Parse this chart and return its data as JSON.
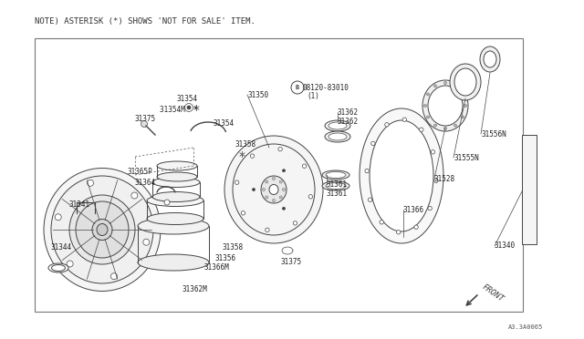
{
  "bg_color": "#ffffff",
  "note_text": "NOTE) ASTERISK (*) SHOWS 'NOT FOR SALE' ITEM.",
  "diagram_id": "A3.3A0065",
  "color": "#444444",
  "thin": 0.5,
  "lw": 0.7,
  "label_fontsize": 5.5,
  "parts_labels": [
    [
      193,
      108,
      "31354"
    ],
    [
      175,
      120,
      "31354M  *"
    ],
    [
      147,
      130,
      "31375"
    ],
    [
      233,
      135,
      "31354"
    ],
    [
      140,
      188,
      "31365P"
    ],
    [
      148,
      200,
      "31364"
    ],
    [
      76,
      224,
      "31341"
    ],
    [
      55,
      272,
      "31344"
    ],
    [
      258,
      158,
      "31358"
    ],
    [
      370,
      123,
      "31362"
    ],
    [
      370,
      133,
      "31362"
    ],
    [
      358,
      202,
      "31361"
    ],
    [
      358,
      212,
      "31361"
    ],
    [
      243,
      272,
      "31358"
    ],
    [
      235,
      283,
      "31356"
    ],
    [
      224,
      294,
      "31366M"
    ],
    [
      200,
      318,
      "31362M"
    ],
    [
      308,
      288,
      "31375"
    ],
    [
      271,
      104,
      "31350"
    ],
    [
      442,
      230,
      "31366"
    ],
    [
      476,
      196,
      "31528"
    ],
    [
      497,
      173,
      "31555N"
    ],
    [
      527,
      147,
      "31556N"
    ],
    [
      542,
      270,
      "31340"
    ]
  ],
  "bolt_label": [
    331,
    96,
    "08120-83010"
  ],
  "bolt_label2": [
    336,
    105,
    "(1)"
  ],
  "front_label": [
    530,
    330,
    "FRONT"
  ]
}
